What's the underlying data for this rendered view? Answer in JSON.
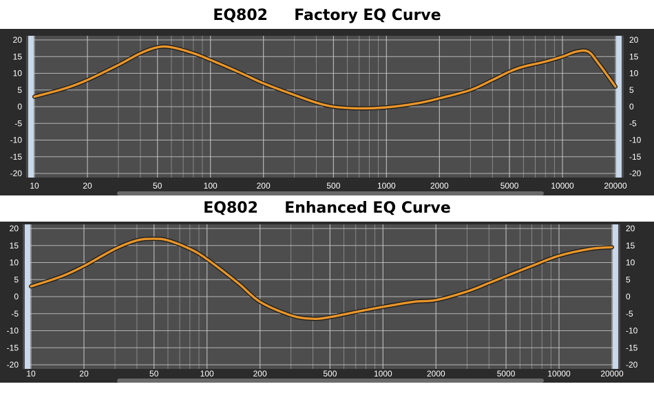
{
  "chart_data": [
    {
      "type": "line",
      "title": "EQ802     Factory EQ Curve",
      "xlabel": "",
      "ylabel": "",
      "xscale": "log",
      "xlim": [
        10,
        20000
      ],
      "ylim": [
        -20,
        20
      ],
      "grid": true,
      "legend": "none",
      "x_tick_labels": [
        "10",
        "20",
        "50",
        "100",
        "200",
        "500",
        "1000",
        "2000",
        "5000",
        "10000",
        "20000"
      ],
      "y_tick_labels": [
        "20",
        "15",
        "10",
        "5",
        "0",
        "-5",
        "-10",
        "-15",
        "-20"
      ],
      "series": [
        {
          "color": "#e8952a",
          "x": [
            10,
            15,
            20,
            30,
            40,
            50,
            60,
            80,
            100,
            150,
            200,
            300,
            400,
            500,
            700,
            1000,
            1500,
            2000,
            3000,
            4000,
            5000,
            6000,
            8000,
            10000,
            12000,
            14000,
            16000,
            20000
          ],
          "y": [
            3,
            5.5,
            8,
            12.5,
            16,
            17.8,
            17.8,
            16,
            14,
            10,
            7,
            3.5,
            1.2,
            0,
            -0.5,
            -0.2,
            1,
            2.5,
            5,
            8,
            10.5,
            12,
            13.5,
            15,
            16.5,
            16.5,
            13,
            6
          ]
        }
      ]
    },
    {
      "type": "line",
      "title": "EQ802     Enhanced EQ Curve",
      "xlabel": "",
      "ylabel": "",
      "xscale": "log",
      "xlim": [
        10,
        20000
      ],
      "ylim": [
        -20,
        20
      ],
      "grid": true,
      "legend": "none",
      "x_tick_labels": [
        "10",
        "20",
        "50",
        "100",
        "200",
        "500",
        "1000",
        "2000",
        "5000",
        "10000",
        "20000"
      ],
      "y_tick_labels": [
        "20",
        "15",
        "10",
        "5",
        "0",
        "-5",
        "-10",
        "-15",
        "-20"
      ],
      "series": [
        {
          "color": "#e8952a",
          "x": [
            10,
            15,
            20,
            30,
            40,
            50,
            60,
            80,
            100,
            150,
            200,
            300,
            400,
            500,
            700,
            1000,
            1500,
            2000,
            3000,
            4000,
            5000,
            7000,
            10000,
            15000,
            20000
          ],
          "y": [
            3,
            6,
            9,
            14,
            16.5,
            17,
            16.5,
            14,
            11,
            4,
            -1.5,
            -5.5,
            -6.5,
            -6,
            -4.5,
            -3,
            -1.5,
            -1,
            1.5,
            4,
            6,
            9,
            12,
            14,
            14.5
          ]
        }
      ]
    }
  ],
  "colors": {
    "plot_bg": "#4d4d4d",
    "grid": "#c8c8c8",
    "curve": "#e8952a",
    "curve_outline": "#1a1a1a",
    "edge_bar": "#c9d8ea",
    "label": "#ffffff",
    "frame": "#2b2b2b"
  }
}
